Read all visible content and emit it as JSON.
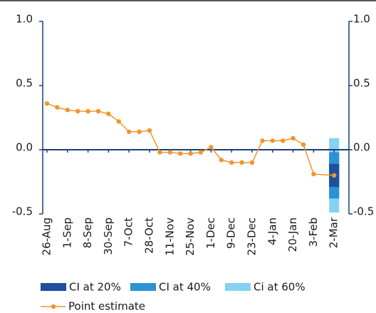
{
  "chart_data": {
    "type": "fan",
    "categories": [
      "26-Aug",
      null,
      "1-Sep",
      null,
      "8-Sep",
      null,
      "30-Sep",
      null,
      "7-Oct",
      null,
      "28-Oct",
      null,
      "11-Nov",
      null,
      "25-Nov",
      null,
      "1-Dec",
      null,
      "9-Dec",
      null,
      "23-Dec",
      null,
      "4-Jan",
      null,
      "20-Jan",
      null,
      "3-Feb",
      null,
      "2-Mar"
    ],
    "series": [
      {
        "name": "CI at 20%",
        "color": "#1f4f9e",
        "index": 28,
        "low": -0.29,
        "high": -0.11
      },
      {
        "name": "CI at 40%",
        "color": "#2b93d3",
        "index": 28,
        "low": -0.38,
        "high": -0.02
      },
      {
        "name": "Ci at 60%",
        "color": "#86d2f2",
        "index": 28,
        "low": -0.49,
        "high": 0.09
      }
    ],
    "line": {
      "name": "Point estimate",
      "color": "#f0962e",
      "values": [
        0.36,
        0.33,
        0.31,
        0.3,
        0.3,
        0.3,
        0.28,
        0.22,
        0.14,
        0.14,
        0.15,
        -0.02,
        -0.02,
        -0.03,
        -0.03,
        -0.02,
        0.02,
        -0.08,
        -0.1,
        -0.1,
        -0.1,
        0.07,
        0.07,
        0.07,
        0.09,
        0.04,
        -0.19,
        -0.195,
        -0.2
      ]
    },
    "ylim": [
      -0.5,
      1.0
    ],
    "yticks": [
      {
        "value": 1,
        "label": "1.0"
      },
      {
        "value": 0.5,
        "label": "0.5"
      },
      {
        "value": 0,
        "label": "0.0"
      },
      {
        "value": -0.5,
        "label": "-0.5"
      }
    ],
    "axis_color": "#1c3f75"
  }
}
